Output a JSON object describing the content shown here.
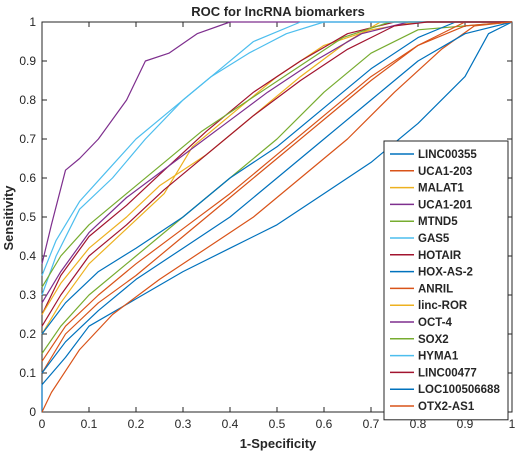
{
  "chart_data": {
    "type": "line",
    "title": "ROC for lncRNA biomarkers",
    "xlabel": "1-Specificity",
    "ylabel": "Sensitivity",
    "xlim": [
      0,
      1
    ],
    "ylim": [
      0,
      1
    ],
    "x_ticks": [
      "0",
      "0.1",
      "0.2",
      "0.3",
      "0.4",
      "0.5",
      "0.6",
      "0.7",
      "0.8",
      "0.9",
      "1"
    ],
    "y_ticks": [
      "0",
      "0.1",
      "0.2",
      "0.3",
      "0.4",
      "0.5",
      "0.6",
      "0.7",
      "0.8",
      "0.9",
      "1"
    ],
    "grid": false,
    "legend_position": "bottom-right",
    "series": [
      {
        "name": "LINC00355",
        "color": "#0072BD",
        "points": [
          [
            0,
            0
          ],
          [
            0,
            0.07
          ],
          [
            0.05,
            0.14
          ],
          [
            0.1,
            0.22
          ],
          [
            0.2,
            0.29
          ],
          [
            0.3,
            0.36
          ],
          [
            0.4,
            0.42
          ],
          [
            0.5,
            0.48
          ],
          [
            0.6,
            0.56
          ],
          [
            0.7,
            0.64
          ],
          [
            0.8,
            0.74
          ],
          [
            0.9,
            0.86
          ],
          [
            0.95,
            0.97
          ],
          [
            1,
            1
          ]
        ]
      },
      {
        "name": "UCA1-203",
        "color": "#D95319",
        "points": [
          [
            0,
            0
          ],
          [
            0.02,
            0.05
          ],
          [
            0.08,
            0.16
          ],
          [
            0.15,
            0.25
          ],
          [
            0.25,
            0.34
          ],
          [
            0.35,
            0.42
          ],
          [
            0.45,
            0.5
          ],
          [
            0.55,
            0.6
          ],
          [
            0.65,
            0.7
          ],
          [
            0.75,
            0.82
          ],
          [
            0.85,
            0.93
          ],
          [
            0.92,
            0.99
          ],
          [
            1,
            1
          ]
        ]
      },
      {
        "name": "MALAT1",
        "color": "#EDB120",
        "points": [
          [
            0,
            0.2
          ],
          [
            0.04,
            0.28
          ],
          [
            0.1,
            0.38
          ],
          [
            0.18,
            0.47
          ],
          [
            0.26,
            0.56
          ],
          [
            0.32,
            0.68
          ],
          [
            0.4,
            0.76
          ],
          [
            0.5,
            0.86
          ],
          [
            0.6,
            0.94
          ],
          [
            0.7,
            0.98
          ],
          [
            0.8,
            1
          ],
          [
            1,
            1
          ]
        ]
      },
      {
        "name": "UCA1-201",
        "color": "#7E2F8E",
        "points": [
          [
            0,
            0.38
          ],
          [
            0.02,
            0.48
          ],
          [
            0.05,
            0.62
          ],
          [
            0.08,
            0.65
          ],
          [
            0.12,
            0.7
          ],
          [
            0.18,
            0.8
          ],
          [
            0.22,
            0.9
          ],
          [
            0.27,
            0.92
          ],
          [
            0.33,
            0.97
          ],
          [
            0.4,
            1
          ],
          [
            1,
            1
          ]
        ]
      },
      {
        "name": "MTND5",
        "color": "#77AC30",
        "points": [
          [
            0,
            0.15
          ],
          [
            0.04,
            0.22
          ],
          [
            0.1,
            0.3
          ],
          [
            0.2,
            0.4
          ],
          [
            0.3,
            0.5
          ],
          [
            0.4,
            0.6
          ],
          [
            0.5,
            0.7
          ],
          [
            0.6,
            0.82
          ],
          [
            0.7,
            0.92
          ],
          [
            0.8,
            0.98
          ],
          [
            1,
            1
          ]
        ]
      },
      {
        "name": "GAS5",
        "color": "#4DBEEE",
        "points": [
          [
            0,
            0.3
          ],
          [
            0.03,
            0.4
          ],
          [
            0.08,
            0.52
          ],
          [
            0.15,
            0.6
          ],
          [
            0.22,
            0.7
          ],
          [
            0.3,
            0.8
          ],
          [
            0.38,
            0.88
          ],
          [
            0.45,
            0.95
          ],
          [
            0.55,
            1
          ],
          [
            1,
            1
          ]
        ]
      },
      {
        "name": "HOTAIR",
        "color": "#A2142F",
        "points": [
          [
            0,
            0.25
          ],
          [
            0.04,
            0.35
          ],
          [
            0.1,
            0.45
          ],
          [
            0.18,
            0.53
          ],
          [
            0.26,
            0.62
          ],
          [
            0.35,
            0.72
          ],
          [
            0.45,
            0.82
          ],
          [
            0.55,
            0.9
          ],
          [
            0.65,
            0.97
          ],
          [
            0.75,
            1
          ],
          [
            1,
            1
          ]
        ]
      },
      {
        "name": "HOX-AS-2",
        "color": "#0072BD",
        "points": [
          [
            0,
            0.2
          ],
          [
            0.05,
            0.28
          ],
          [
            0.12,
            0.36
          ],
          [
            0.2,
            0.42
          ],
          [
            0.3,
            0.5
          ],
          [
            0.4,
            0.6
          ],
          [
            0.5,
            0.68
          ],
          [
            0.6,
            0.78
          ],
          [
            0.7,
            0.88
          ],
          [
            0.8,
            0.96
          ],
          [
            0.88,
            1
          ],
          [
            1,
            1
          ]
        ]
      },
      {
        "name": "ANRIL",
        "color": "#D95319",
        "points": [
          [
            0,
            0.1
          ],
          [
            0.05,
            0.2
          ],
          [
            0.12,
            0.28
          ],
          [
            0.2,
            0.35
          ],
          [
            0.3,
            0.45
          ],
          [
            0.4,
            0.55
          ],
          [
            0.5,
            0.65
          ],
          [
            0.6,
            0.75
          ],
          [
            0.7,
            0.85
          ],
          [
            0.8,
            0.94
          ],
          [
            0.9,
            1
          ],
          [
            1,
            1
          ]
        ]
      },
      {
        "name": "linc-ROR",
        "color": "#EDB120",
        "points": [
          [
            0,
            0.25
          ],
          [
            0.04,
            0.33
          ],
          [
            0.1,
            0.42
          ],
          [
            0.18,
            0.5
          ],
          [
            0.25,
            0.58
          ],
          [
            0.35,
            0.66
          ],
          [
            0.45,
            0.76
          ],
          [
            0.55,
            0.86
          ],
          [
            0.65,
            0.95
          ],
          [
            0.72,
            1
          ],
          [
            1,
            1
          ]
        ]
      },
      {
        "name": "OCT-4",
        "color": "#7E2F8E",
        "points": [
          [
            0,
            0.28
          ],
          [
            0.04,
            0.36
          ],
          [
            0.1,
            0.46
          ],
          [
            0.18,
            0.55
          ],
          [
            0.28,
            0.64
          ],
          [
            0.38,
            0.73
          ],
          [
            0.48,
            0.82
          ],
          [
            0.58,
            0.9
          ],
          [
            0.68,
            0.97
          ],
          [
            0.78,
            1
          ],
          [
            1,
            1
          ]
        ]
      },
      {
        "name": "SOX2",
        "color": "#77AC30",
        "points": [
          [
            0,
            0.32
          ],
          [
            0.04,
            0.4
          ],
          [
            0.1,
            0.48
          ],
          [
            0.18,
            0.56
          ],
          [
            0.26,
            0.64
          ],
          [
            0.34,
            0.72
          ],
          [
            0.44,
            0.8
          ],
          [
            0.54,
            0.88
          ],
          [
            0.64,
            0.96
          ],
          [
            0.74,
            1
          ],
          [
            1,
            1
          ]
        ]
      },
      {
        "name": "HYMA1",
        "color": "#4DBEEE",
        "points": [
          [
            0,
            0.35
          ],
          [
            0.03,
            0.44
          ],
          [
            0.08,
            0.54
          ],
          [
            0.14,
            0.62
          ],
          [
            0.2,
            0.7
          ],
          [
            0.28,
            0.78
          ],
          [
            0.36,
            0.86
          ],
          [
            0.44,
            0.92
          ],
          [
            0.52,
            0.97
          ],
          [
            0.6,
            1
          ],
          [
            1,
            1
          ]
        ]
      },
      {
        "name": "LINC00477",
        "color": "#A2142F",
        "points": [
          [
            0,
            0.22
          ],
          [
            0.04,
            0.3
          ],
          [
            0.1,
            0.4
          ],
          [
            0.18,
            0.48
          ],
          [
            0.26,
            0.57
          ],
          [
            0.35,
            0.66
          ],
          [
            0.45,
            0.76
          ],
          [
            0.55,
            0.85
          ],
          [
            0.65,
            0.93
          ],
          [
            0.75,
            0.99
          ],
          [
            0.82,
            1
          ],
          [
            1,
            1
          ]
        ]
      },
      {
        "name": "LOC100506688",
        "color": "#0072BD",
        "points": [
          [
            0,
            0.1
          ],
          [
            0.05,
            0.18
          ],
          [
            0.12,
            0.26
          ],
          [
            0.2,
            0.34
          ],
          [
            0.3,
            0.42
          ],
          [
            0.4,
            0.5
          ],
          [
            0.5,
            0.6
          ],
          [
            0.6,
            0.7
          ],
          [
            0.7,
            0.8
          ],
          [
            0.8,
            0.9
          ],
          [
            0.9,
            0.97
          ],
          [
            1,
            1
          ]
        ]
      },
      {
        "name": "OTX2-AS1",
        "color": "#D95319",
        "points": [
          [
            0,
            0.13
          ],
          [
            0.05,
            0.22
          ],
          [
            0.12,
            0.3
          ],
          [
            0.2,
            0.38
          ],
          [
            0.3,
            0.47
          ],
          [
            0.4,
            0.56
          ],
          [
            0.5,
            0.66
          ],
          [
            0.6,
            0.76
          ],
          [
            0.7,
            0.86
          ],
          [
            0.8,
            0.94
          ],
          [
            0.9,
            0.99
          ],
          [
            1,
            1
          ]
        ]
      }
    ]
  }
}
